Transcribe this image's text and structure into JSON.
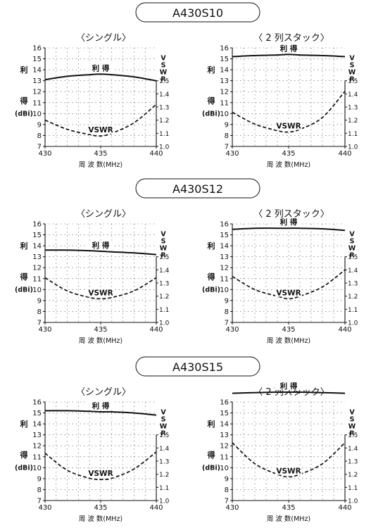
{
  "gain_label": "利 得",
  "left_label": [
    "利",
    "得",
    "(dBi)"
  ],
  "right_label": [
    "V",
    "S",
    "W",
    "R"
  ],
  "vswr_label": "VSWR",
  "xlabel": "周 波 数(MHz)",
  "models": [
    {
      "title": "A430S10",
      "sub": [
        "〈シングル〉",
        "〈 2 列スタック〉"
      ]
    },
    {
      "title": "A430S12",
      "sub": [
        "〈シングル〉",
        "〈 2 列スタック〉"
      ]
    },
    {
      "title": "A430S15",
      "sub": [
        "〈シングル〉",
        "〈 2 列スタック〉"
      ]
    }
  ],
  "chart_data": [
    {
      "type": "line",
      "model": "A430S10",
      "config": "〈シングル〉",
      "x": [
        430,
        432,
        434,
        435,
        436,
        438,
        440
      ],
      "xlim": [
        430,
        440
      ],
      "xticks": [
        430,
        435,
        440
      ],
      "ylim": [
        7,
        16
      ],
      "yticks": [
        7,
        8,
        9,
        10,
        11,
        12,
        13,
        14,
        15,
        16
      ],
      "y2lim": [
        1.0,
        1.5
      ],
      "y2ticks": [
        "1.0",
        "1.1",
        "1.2",
        "1.3",
        "1.4",
        "1.5"
      ],
      "series": [
        {
          "name": "利 得",
          "axis": "left",
          "style": "solid",
          "values": [
            13.1,
            13.4,
            13.55,
            13.6,
            13.55,
            13.35,
            13.0
          ]
        },
        {
          "name": "VSWR",
          "axis": "right",
          "style": "dashed",
          "values": [
            1.2,
            1.13,
            1.09,
            1.08,
            1.1,
            1.18,
            1.32
          ]
        }
      ]
    },
    {
      "type": "line",
      "model": "A430S10",
      "config": "〈 2 列スタック〉",
      "x": [
        430,
        432,
        434,
        435,
        436,
        438,
        440
      ],
      "xlim": [
        430,
        440
      ],
      "xticks": [
        430,
        435,
        440
      ],
      "ylim": [
        7,
        16
      ],
      "yticks": [
        7,
        8,
        9,
        10,
        11,
        12,
        13,
        14,
        15,
        16
      ],
      "y2lim": [
        1.0,
        1.5
      ],
      "y2ticks": [
        "1.0",
        "1.1",
        "1.2",
        "1.3",
        "1.4",
        "1.5"
      ],
      "series": [
        {
          "name": "利 得",
          "axis": "left",
          "style": "solid",
          "values": [
            15.2,
            15.3,
            15.35,
            15.4,
            15.35,
            15.3,
            15.2
          ]
        },
        {
          "name": "VSWR",
          "axis": "right",
          "style": "dashed",
          "values": [
            1.26,
            1.17,
            1.12,
            1.11,
            1.13,
            1.22,
            1.42
          ]
        }
      ]
    },
    {
      "type": "line",
      "model": "A430S12",
      "config": "〈シングル〉",
      "x": [
        430,
        432,
        434,
        435,
        436,
        438,
        440
      ],
      "xlim": [
        430,
        440
      ],
      "xticks": [
        430,
        435,
        440
      ],
      "ylim": [
        7,
        16
      ],
      "yticks": [
        7,
        8,
        9,
        10,
        11,
        12,
        13,
        14,
        15,
        16
      ],
      "y2lim": [
        1.0,
        1.5
      ],
      "y2ticks": [
        "1.0",
        "1.1",
        "1.2",
        "1.3",
        "1.4",
        "1.5"
      ],
      "series": [
        {
          "name": "利 得",
          "axis": "left",
          "style": "solid",
          "values": [
            13.6,
            13.6,
            13.55,
            13.5,
            13.45,
            13.35,
            13.2
          ]
        },
        {
          "name": "VSWR",
          "axis": "right",
          "style": "dashed",
          "values": [
            1.34,
            1.24,
            1.19,
            1.18,
            1.19,
            1.24,
            1.34
          ]
        }
      ]
    },
    {
      "type": "line",
      "model": "A430S12",
      "config": "〈 2 列スタック〉",
      "x": [
        430,
        432,
        434,
        435,
        436,
        438,
        440
      ],
      "xlim": [
        430,
        440
      ],
      "xticks": [
        430,
        435,
        440
      ],
      "ylim": [
        7,
        16
      ],
      "yticks": [
        7,
        8,
        9,
        10,
        11,
        12,
        13,
        14,
        15,
        16
      ],
      "y2lim": [
        1.0,
        1.5
      ],
      "y2ticks": [
        "1.0",
        "1.1",
        "1.2",
        "1.3",
        "1.4",
        "1.5"
      ],
      "series": [
        {
          "name": "利 得",
          "axis": "left",
          "style": "solid",
          "values": [
            15.5,
            15.6,
            15.6,
            15.6,
            15.6,
            15.55,
            15.4
          ]
        },
        {
          "name": "VSWR",
          "axis": "right",
          "style": "dashed",
          "values": [
            1.35,
            1.25,
            1.2,
            1.18,
            1.2,
            1.27,
            1.4
          ]
        }
      ]
    },
    {
      "type": "line",
      "model": "A430S15",
      "config": "〈シングル〉",
      "x": [
        430,
        432,
        434,
        435,
        436,
        438,
        440
      ],
      "xlim": [
        430,
        440
      ],
      "xticks": [
        430,
        435,
        440
      ],
      "ylim": [
        7,
        16
      ],
      "yticks": [
        7,
        8,
        9,
        10,
        11,
        12,
        13,
        14,
        15,
        16
      ],
      "y2lim": [
        1.0,
        1.5
      ],
      "y2ticks": [
        "1.0",
        "1.1",
        "1.2",
        "1.3",
        "1.4",
        "1.5"
      ],
      "series": [
        {
          "name": "利 得",
          "axis": "left",
          "style": "solid",
          "values": [
            15.2,
            15.2,
            15.15,
            15.1,
            15.1,
            15.0,
            14.8
          ]
        },
        {
          "name": "VSWR",
          "axis": "right",
          "style": "dashed",
          "values": [
            1.36,
            1.23,
            1.17,
            1.16,
            1.17,
            1.24,
            1.37
          ]
        }
      ]
    },
    {
      "type": "line",
      "model": "A430S15",
      "config": "〈 2 列スタック〉",
      "x": [
        430,
        432,
        434,
        435,
        436,
        438,
        440
      ],
      "xlim": [
        430,
        440
      ],
      "xticks": [
        430,
        435,
        440
      ],
      "ylim": [
        7,
        16
      ],
      "yticks": [
        7,
        8,
        9,
        10,
        11,
        12,
        13,
        14,
        15,
        16
      ],
      "y2lim": [
        1.0,
        1.5
      ],
      "y2ticks": [
        "1.0",
        "1.1",
        "1.2",
        "1.3",
        "1.4",
        "1.5"
      ],
      "series": [
        {
          "name": "利 得",
          "axis": "left",
          "style": "solid",
          "values": [
            16.8,
            16.85,
            16.9,
            16.9,
            16.9,
            16.85,
            16.8
          ]
        },
        {
          "name": "VSWR",
          "axis": "right",
          "style": "dashed",
          "values": [
            1.44,
            1.28,
            1.2,
            1.18,
            1.2,
            1.28,
            1.44
          ]
        }
      ]
    }
  ]
}
